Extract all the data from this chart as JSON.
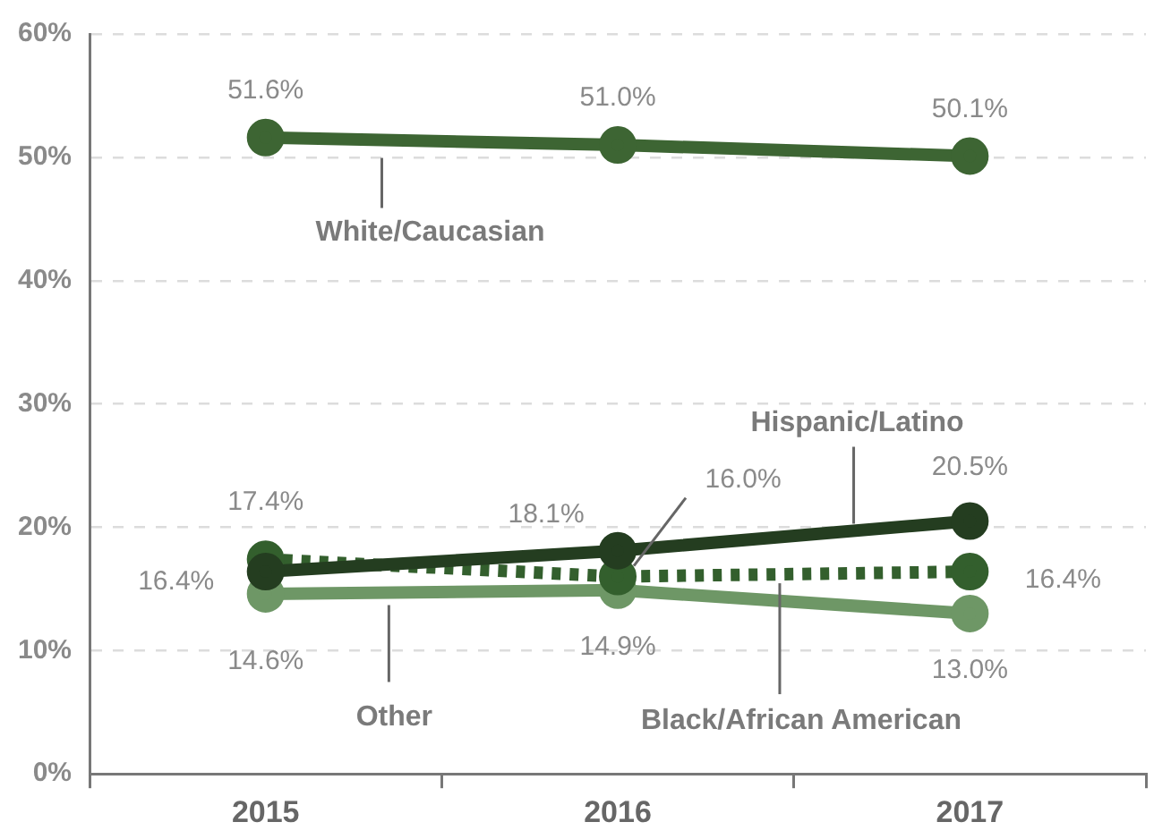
{
  "chart_data": {
    "type": "line",
    "categories": [
      "2015",
      "2016",
      "2017"
    ],
    "series": [
      {
        "name": "White/Caucasian",
        "color": "#3d6533",
        "values": [
          51.6,
          51.0,
          50.1
        ],
        "value_labels": [
          "51.6%",
          "51.0%",
          "50.1%"
        ]
      },
      {
        "name": "Hispanic/Latino",
        "color": "#243d20",
        "values": [
          16.4,
          18.1,
          20.5
        ],
        "value_labels": [
          "16.4%",
          "18.1%",
          "20.5%"
        ]
      },
      {
        "name": "Black/African American",
        "color": "#335f2d",
        "values": [
          17.4,
          16.0,
          16.4
        ],
        "value_labels": [
          "17.4%",
          "16.0%",
          "16.4%"
        ],
        "line_style": "dotted"
      },
      {
        "name": "Other",
        "color": "#6e9766",
        "values": [
          14.6,
          14.9,
          13.0
        ],
        "value_labels": [
          "14.6%",
          "14.9%",
          "13.0%"
        ]
      }
    ],
    "ylim": [
      0,
      60
    ],
    "yticks": [
      {
        "value": 0,
        "label": "0%"
      },
      {
        "value": 10,
        "label": "10%"
      },
      {
        "value": 20,
        "label": "20%"
      },
      {
        "value": 30,
        "label": "30%"
      },
      {
        "value": 40,
        "label": "40%"
      },
      {
        "value": 50,
        "label": "50%"
      },
      {
        "value": 60,
        "label": "60%"
      }
    ],
    "grid": "y",
    "legend": false,
    "marker": "circle",
    "line_style": "solid"
  }
}
